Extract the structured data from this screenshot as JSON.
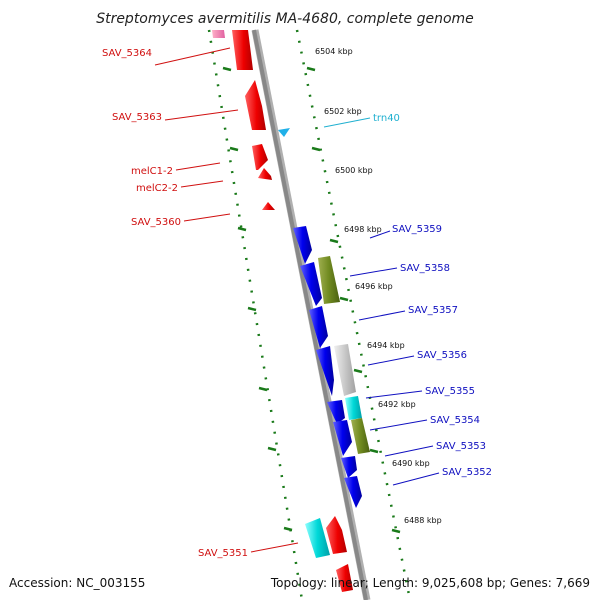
{
  "title": "Streptomyces avermitilis MA-4680, complete genome",
  "footer": {
    "accession": "Accession: NC_003155",
    "summary": "Topology: linear; Length: 9,025,608 bp; Genes: 7,669"
  },
  "colors": {
    "axis": "#888888",
    "ticks": "#1a7a1a",
    "left_label": "#d01010",
    "right_label": "#1010c0",
    "trna_label": "#20b0d0"
  },
  "kbp_labels": [
    "6504 kbp",
    "6502 kbp",
    "6500 kbp",
    "6498 kbp",
    "6496 kbp",
    "6494 kbp",
    "6492 kbp",
    "6490 kbp",
    "6488 kbp"
  ],
  "genes": {
    "left": [
      "SAV_5364",
      "SAV_5363",
      "melC1-2",
      "melC2-2",
      "SAV_5360",
      "SAV_5351"
    ],
    "right": [
      "SAV_5359",
      "SAV_5358",
      "SAV_5357",
      "SAV_5356",
      "SAV_5355",
      "SAV_5354",
      "SAV_5353",
      "SAV_5352"
    ],
    "trna": "trn40"
  }
}
